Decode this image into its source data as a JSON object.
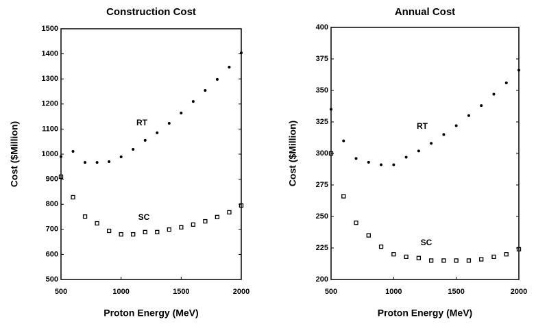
{
  "chart_data": [
    {
      "type": "scatter",
      "title": "Construction Cost",
      "x_label": "Proton Energy (MeV)",
      "y_label": "Cost ($Million)",
      "xlim": [
        500,
        2000
      ],
      "ylim": [
        500,
        1500
      ],
      "xticks": [
        500,
        1000,
        1500,
        2000
      ],
      "yticks": [
        500,
        600,
        700,
        800,
        900,
        1000,
        1100,
        1200,
        1300,
        1400,
        1500
      ],
      "x": [
        500,
        600,
        700,
        800,
        900,
        1000,
        1100,
        1200,
        1300,
        1400,
        1500,
        1600,
        1700,
        1800,
        1900,
        2000
      ],
      "series": [
        {
          "name": "RT",
          "color": "#000000",
          "marker": "dot",
          "values": [
            990,
            1011,
            967,
            967,
            970,
            989,
            1019,
            1055,
            1085,
            1123,
            1164,
            1210,
            1254,
            1298,
            1347,
            1404
          ]
        },
        {
          "name": "SC",
          "color": "#000000",
          "marker": "square",
          "values": [
            910,
            828,
            751,
            724,
            694,
            680,
            680,
            689,
            689,
            699,
            708,
            719,
            732,
            749,
            768,
            795
          ]
        }
      ]
    },
    {
      "type": "scatter",
      "title": "Annual Cost",
      "x_label": "Proton Energy (MeV)",
      "y_label": "Cost ($Million)",
      "xlim": [
        500,
        2000
      ],
      "ylim": [
        200,
        400
      ],
      "xticks": [
        500,
        1000,
        1500,
        2000
      ],
      "yticks": [
        200,
        225,
        250,
        275,
        300,
        325,
        350,
        375,
        400
      ],
      "x": [
        500,
        600,
        700,
        800,
        900,
        1000,
        1100,
        1200,
        1300,
        1400,
        1500,
        1600,
        1700,
        1800,
        1900,
        2000
      ],
      "series": [
        {
          "name": "RT",
          "color": "#000000",
          "marker": "dot",
          "values": [
            335,
            310,
            296,
            293,
            291,
            291,
            297,
            302,
            308,
            315,
            322,
            330,
            338,
            347,
            356,
            366
          ]
        },
        {
          "name": "SC",
          "color": "#000000",
          "marker": "square",
          "values": [
            300,
            266,
            245,
            235,
            226,
            220,
            218,
            217,
            215,
            215,
            215,
            215,
            216,
            218,
            220,
            224
          ]
        }
      ]
    }
  ]
}
